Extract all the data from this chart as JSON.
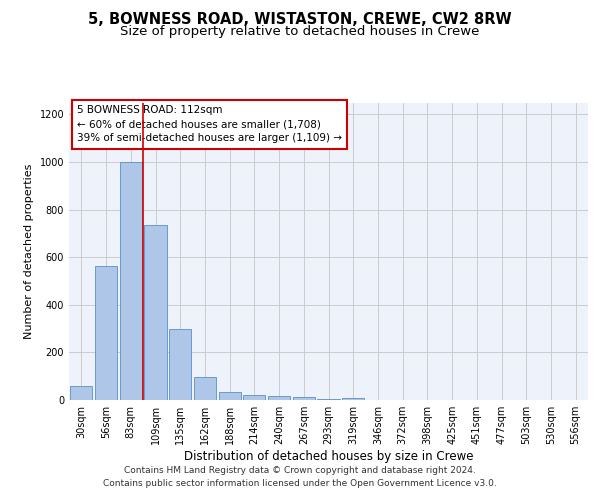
{
  "title1": "5, BOWNESS ROAD, WISTASTON, CREWE, CW2 8RW",
  "title2": "Size of property relative to detached houses in Crewe",
  "xlabel": "Distribution of detached houses by size in Crewe",
  "ylabel": "Number of detached properties",
  "categories": [
    "30sqm",
    "56sqm",
    "83sqm",
    "109sqm",
    "135sqm",
    "162sqm",
    "188sqm",
    "214sqm",
    "240sqm",
    "267sqm",
    "293sqm",
    "319sqm",
    "346sqm",
    "372sqm",
    "398sqm",
    "425sqm",
    "451sqm",
    "477sqm",
    "503sqm",
    "530sqm",
    "556sqm"
  ],
  "values": [
    60,
    565,
    1000,
    735,
    300,
    95,
    35,
    22,
    15,
    12,
    4,
    10,
    0,
    0,
    0,
    0,
    0,
    0,
    0,
    0,
    0
  ],
  "vline_x": 2.5,
  "bar_color": "#aec6e8",
  "bar_edge_color": "#5b8fc9",
  "vline_color": "#cc0000",
  "grid_color": "#cccccc",
  "bg_color": "#eef2fa",
  "annotation_box_edge_color": "#cc0000",
  "annotation_text_line1": "5 BOWNESS ROAD: 112sqm",
  "annotation_text_line2": "← 60% of detached houses are smaller (1,708)",
  "annotation_text_line3": "39% of semi-detached houses are larger (1,109) →",
  "footer_line1": "Contains HM Land Registry data © Crown copyright and database right 2024.",
  "footer_line2": "Contains public sector information licensed under the Open Government Licence v3.0.",
  "ylim": [
    0,
    1250
  ],
  "yticks": [
    0,
    200,
    400,
    600,
    800,
    1000,
    1200
  ],
  "title1_fontsize": 10.5,
  "title2_fontsize": 9.5,
  "xlabel_fontsize": 8.5,
  "ylabel_fontsize": 8.0,
  "tick_fontsize": 7.0,
  "footer_fontsize": 6.5,
  "annot_fontsize": 7.5
}
